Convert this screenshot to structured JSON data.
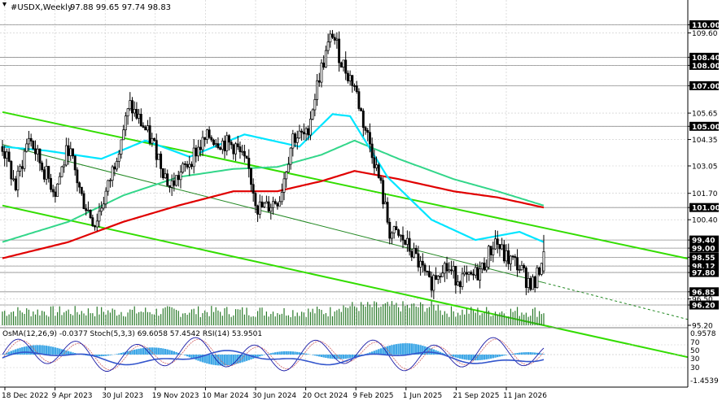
{
  "header": {
    "symbol": "#USDX,Weekly",
    "ohlc": "97.88 99.65 97.74 98.83"
  },
  "indicator_label": "OsMA(12,26,9) -0.0377  Stoch(5,3,3) 69.6058 57.4542  RSI(14) 53.9501",
  "colors": {
    "background": "#ffffff",
    "candles": "#000000",
    "ema_fast": "#00e5ff",
    "ema_mid": "#33d68a",
    "ema_slow": "#e00000",
    "channel": "#33dd00",
    "osma_histogram": "#3ea7e6",
    "stoch_main": "#1a1aa6",
    "stoch_signal": "#d06060",
    "rsi": "#3355cc",
    "grid": "#c8c8c8",
    "price_label_bg": "#000000"
  },
  "chart_data": {
    "type": "candlestick",
    "title": "#USDX,Weekly",
    "ylim": [
      95.2,
      110.9
    ],
    "price_axis_labels": [
      "110.00",
      "109.60",
      "108.40",
      "108.00",
      "107.00",
      "105.65",
      "105.00",
      "104.35",
      "103.05",
      "101.70",
      "101.00",
      "100.40",
      "99.40",
      "99.00",
      "98.55",
      "98.12",
      "97.80",
      "96.85",
      "96.50",
      "96.20",
      "95.20"
    ],
    "price_markers_highlighted": [
      "110.00",
      "108.40",
      "108.00",
      "107.00",
      "105.00",
      "101.00",
      "99.40",
      "99.00",
      "98.55",
      "98.12",
      "97.80",
      "96.85",
      "96.20"
    ],
    "x_tick_labels": [
      "18 Dec 2022",
      "9 Apr 2023",
      "30 Jul 2023",
      "19 Nov 2023",
      "10 Mar 2024",
      "30 Jun 2024",
      "20 Oct 2024",
      "9 Feb 2025",
      "1 Jun 2025",
      "21 Sep 2025",
      "11 Jan 2026"
    ],
    "close_trajectory": [
      [
        0,
        104.0
      ],
      [
        6,
        102.0
      ],
      [
        12,
        104.5
      ],
      [
        18,
        103.0
      ],
      [
        24,
        101.8
      ],
      [
        30,
        104.0
      ],
      [
        36,
        101.5
      ],
      [
        42,
        100.2
      ],
      [
        48,
        102.0
      ],
      [
        54,
        104.5
      ],
      [
        58,
        106.0
      ],
      [
        64,
        105.0
      ],
      [
        70,
        103.8
      ],
      [
        76,
        102.0
      ],
      [
        82,
        102.8
      ],
      [
        88,
        103.8
      ],
      [
        94,
        104.5
      ],
      [
        100,
        104.2
      ],
      [
        106,
        104.0
      ],
      [
        112,
        102.8
      ],
      [
        116,
        101.0
      ],
      [
        120,
        101.0
      ],
      [
        126,
        101.5
      ],
      [
        132,
        104.5
      ],
      [
        138,
        104.5
      ],
      [
        144,
        107.5
      ],
      [
        150,
        109.6
      ],
      [
        154,
        108.2
      ],
      [
        160,
        107.0
      ],
      [
        164,
        105.2
      ],
      [
        168,
        103.8
      ],
      [
        172,
        102.0
      ],
      [
        176,
        99.8
      ],
      [
        182,
        99.4
      ],
      [
        188,
        98.5
      ],
      [
        194,
        97.2
      ],
      [
        200,
        98.2
      ],
      [
        206,
        97.6
      ],
      [
        212,
        97.4
      ],
      [
        218,
        98.0
      ],
      [
        224,
        99.4
      ],
      [
        228,
        98.6
      ],
      [
        234,
        98.2
      ],
      [
        238,
        97.5
      ],
      [
        242,
        97.2
      ],
      [
        246,
        98.83
      ]
    ],
    "ema_fast_points": [
      [
        0,
        104.0
      ],
      [
        20,
        103.8
      ],
      [
        45,
        103.4
      ],
      [
        65,
        104.3
      ],
      [
        85,
        103.5
      ],
      [
        110,
        104.6
      ],
      [
        135,
        104.0
      ],
      [
        150,
        105.6
      ],
      [
        158,
        105.5
      ],
      [
        175,
        102.5
      ],
      [
        195,
        100.4
      ],
      [
        215,
        99.4
      ],
      [
        235,
        99.8
      ],
      [
        246,
        99.3
      ]
    ],
    "ema_mid_points": [
      [
        0,
        99.3
      ],
      [
        30,
        100.3
      ],
      [
        55,
        101.6
      ],
      [
        80,
        102.5
      ],
      [
        105,
        102.9
      ],
      [
        125,
        103.0
      ],
      [
        145,
        103.6
      ],
      [
        160,
        104.3
      ],
      [
        180,
        103.4
      ],
      [
        205,
        102.4
      ],
      [
        225,
        101.8
      ],
      [
        246,
        101.1
      ]
    ],
    "ema_slow_points": [
      [
        0,
        98.5
      ],
      [
        30,
        99.3
      ],
      [
        55,
        100.3
      ],
      [
        80,
        101.1
      ],
      [
        105,
        101.8
      ],
      [
        125,
        101.8
      ],
      [
        145,
        102.3
      ],
      [
        160,
        102.8
      ],
      [
        180,
        102.4
      ],
      [
        205,
        101.8
      ],
      [
        225,
        101.5
      ],
      [
        246,
        101.0
      ]
    ],
    "channel_upper": [
      [
        0,
        105.7
      ],
      [
        246,
        100.0
      ]
    ],
    "channel_mid": [
      [
        0,
        104.1
      ],
      [
        246,
        97.3
      ]
    ],
    "channel_lower": [
      [
        0,
        101.1
      ],
      [
        246,
        95.2
      ]
    ]
  }
}
